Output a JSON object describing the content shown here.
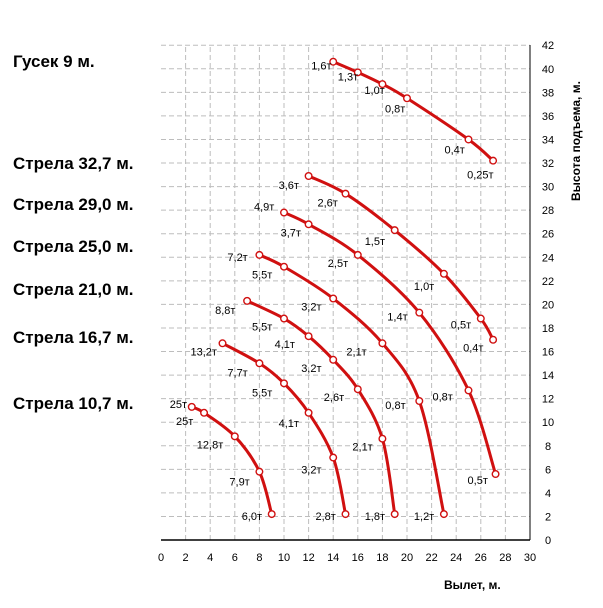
{
  "chart_data": {
    "type": "line",
    "xlabel": "Вылет, м.",
    "ylabel": "Высота подъема, м.",
    "xlim": [
      0,
      30
    ],
    "ylim": [
      0,
      42
    ],
    "x_ticks": [
      "0",
      "2",
      "4",
      "6",
      "8",
      "10",
      "12",
      "14",
      "16",
      "18",
      "20",
      "22",
      "24",
      "26",
      "28",
      "30"
    ],
    "y_ticks": [
      "0",
      "2",
      "4",
      "6",
      "8",
      "10",
      "12",
      "14",
      "16",
      "18",
      "20",
      "22",
      "24",
      "26",
      "28",
      "30",
      "32",
      "34",
      "36",
      "38",
      "40",
      "42"
    ],
    "grid": true,
    "colors": {
      "curve": "#d01010",
      "grid": "#bdbdbd"
    },
    "series": [
      {
        "name": "Гусек 9 м.",
        "points": [
          {
            "x": 14.0,
            "y": 40.6,
            "label": "1,6т"
          },
          {
            "x": 16.0,
            "y": 39.7,
            "label": "1,3т"
          },
          {
            "x": 18.0,
            "y": 38.7,
            "label": "1,0т"
          },
          {
            "x": 20.0,
            "y": 37.5,
            "label": "0,8т"
          },
          {
            "x": 25.0,
            "y": 34.0,
            "label": "0,4т"
          },
          {
            "x": 27.0,
            "y": 32.2,
            "label": "0,25т"
          }
        ]
      },
      {
        "name": "Стрела 32,7 м.",
        "points": [
          {
            "x": 12.0,
            "y": 30.9,
            "label": "3,6т"
          },
          {
            "x": 15.0,
            "y": 29.4,
            "label": "2,6т"
          },
          {
            "x": 19.0,
            "y": 26.3,
            "label": "1,5т"
          },
          {
            "x": 23.0,
            "y": 22.6,
            "label": "1,0т"
          },
          {
            "x": 26.0,
            "y": 18.8,
            "label": "0,5т"
          },
          {
            "x": 27.0,
            "y": 17.0,
            "label": "0,4т"
          }
        ]
      },
      {
        "name": "Стрела 29,0 м.",
        "points": [
          {
            "x": 10.0,
            "y": 27.8,
            "label": "4,9т"
          },
          {
            "x": 12.0,
            "y": 26.8,
            "label": "3,7т"
          },
          {
            "x": 16.0,
            "y": 24.2,
            "label": "2,5т"
          },
          {
            "x": 21.0,
            "y": 19.3,
            "label": "1,4т"
          },
          {
            "x": 25.0,
            "y": 12.7,
            "label": "0,8т"
          },
          {
            "x": 27.2,
            "y": 5.6,
            "label": "0,5т"
          }
        ]
      },
      {
        "name": "Стрела 25,0 м.",
        "points": [
          {
            "x": 8.0,
            "y": 24.2,
            "label": "7,2т"
          },
          {
            "x": 10.0,
            "y": 23.2,
            "label": "5,5т"
          },
          {
            "x": 14.0,
            "y": 20.5,
            "label": "3,2т"
          },
          {
            "x": 18.0,
            "y": 16.7,
            "label": "2,1т"
          },
          {
            "x": 21.0,
            "y": 11.8,
            "label": "0,8т"
          },
          {
            "x": 23.0,
            "y": 2.2,
            "label": "1,2т"
          }
        ]
      },
      {
        "name": "Стрела 21,0 м.",
        "points": [
          {
            "x": 7.0,
            "y": 20.3,
            "label": "8,8т"
          },
          {
            "x": 10.0,
            "y": 18.8,
            "label": "5,5т"
          },
          {
            "x": 12.0,
            "y": 17.3,
            "label": "4,1т"
          },
          {
            "x": 14.0,
            "y": 15.3,
            "label": "3,2т"
          },
          {
            "x": 16.0,
            "y": 12.8,
            "label": "2,6т"
          },
          {
            "x": 18.0,
            "y": 8.6,
            "label": "2,1т"
          },
          {
            "x": 19.0,
            "y": 2.2,
            "label": "1,8т"
          }
        ]
      },
      {
        "name": "Стрела 16,7 м.",
        "points": [
          {
            "x": 5.0,
            "y": 16.7,
            "label": "13,2т"
          },
          {
            "x": 8.0,
            "y": 15.0,
            "label": "7,7т"
          },
          {
            "x": 10.0,
            "y": 13.3,
            "label": "5,5т"
          },
          {
            "x": 12.0,
            "y": 10.8,
            "label": "4,1т"
          },
          {
            "x": 14.0,
            "y": 7.0,
            "label": "3,2т"
          },
          {
            "x": 15.0,
            "y": 2.2,
            "label": "2,8т"
          }
        ]
      },
      {
        "name": "Стрела 10,7 м.",
        "points": [
          {
            "x": 2.5,
            "y": 11.3,
            "label": "25т"
          },
          {
            "x": 3.5,
            "y": 10.8,
            "label": "25т"
          },
          {
            "x": 6.0,
            "y": 8.8,
            "label": "12,8т"
          },
          {
            "x": 8.0,
            "y": 5.8,
            "label": "7,9т"
          },
          {
            "x": 9.0,
            "y": 2.2,
            "label": "6,0т"
          }
        ]
      }
    ]
  }
}
